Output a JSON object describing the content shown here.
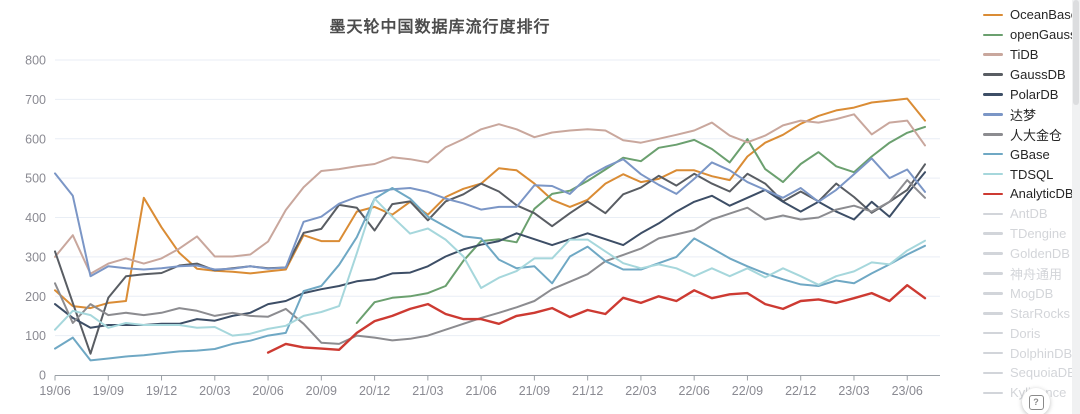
{
  "title": "墨天轮中国数据库流行度排行",
  "help_button": {
    "label": "?"
  },
  "chart_data": {
    "type": "line",
    "title": "墨天轮中国数据库流行度排行",
    "xlabel": "",
    "ylabel": "",
    "ylim": [
      0,
      800
    ],
    "y_ticks": [
      0,
      100,
      200,
      300,
      400,
      500,
      600,
      700,
      800
    ],
    "grid": "horizontal",
    "legend_position": "right",
    "x_tick_labels": [
      "19/06",
      "19/09",
      "19/12",
      "20/03",
      "20/06",
      "20/09",
      "20/12",
      "21/03",
      "21/06",
      "21/09",
      "21/12",
      "22/03",
      "22/06",
      "22/09",
      "22/12",
      "23/03",
      "23/06"
    ],
    "months_total": 50,
    "x_tick_month_step": 3,
    "series": [
      {
        "name": "OceanBase",
        "color": "#DA8C35",
        "start_index": 0,
        "values": [
          215,
          175,
          170,
          183,
          188,
          450,
          375,
          310,
          270,
          265,
          262,
          258,
          263,
          268,
          355,
          340,
          340,
          415,
          427,
          407,
          440,
          407,
          452,
          473,
          486,
          525,
          520,
          486,
          445,
          427,
          445,
          486,
          510,
          490,
          498,
          520,
          520,
          505,
          495,
          555,
          590,
          610,
          638,
          658,
          672,
          679,
          692,
          697,
          702,
          646
        ]
      },
      {
        "name": "openGauss",
        "color": "#6BA06F",
        "start_index": 17,
        "values": [
          132,
          185,
          196,
          200,
          208,
          226,
          290,
          340,
          345,
          337,
          422,
          460,
          468,
          493,
          522,
          552,
          543,
          577,
          585,
          597,
          574,
          540,
          599,
          523,
          490,
          536,
          566,
          530,
          515,
          555,
          590,
          615,
          630
        ]
      },
      {
        "name": "TiDB",
        "color": "#C9A79D",
        "start_index": 0,
        "values": [
          300,
          355,
          257,
          283,
          296,
          283,
          296,
          321,
          352,
          301,
          301,
          306,
          339,
          419,
          477,
          518,
          523,
          530,
          536,
          553,
          548,
          540,
          578,
          599,
          624,
          637,
          624,
          604,
          616,
          621,
          624,
          621,
          596,
          590,
          600,
          610,
          621,
          641,
          608,
          591,
          608,
          634,
          646,
          641,
          650,
          662,
          611,
          641,
          646,
          583
        ]
      },
      {
        "name": "GaussDB",
        "color": "#595D63",
        "start_index": 0,
        "values": [
          314,
          183,
          54,
          196,
          251,
          256,
          259,
          278,
          283,
          266,
          271,
          276,
          271,
          273,
          361,
          371,
          432,
          425,
          367,
          434,
          441,
          393,
          441,
          459,
          486,
          466,
          431,
          411,
          378,
          411,
          441,
          411,
          459,
          476,
          506,
          481,
          511,
          486,
          466,
          511,
          486,
          441,
          466,
          441,
          486,
          452,
          412,
          440,
          470,
          535
        ]
      },
      {
        "name": "PolarDB",
        "color": "#3D4E66",
        "start_index": 0,
        "values": [
          180,
          145,
          120,
          127,
          127,
          127,
          130,
          130,
          142,
          138,
          150,
          158,
          180,
          188,
          208,
          218,
          226,
          238,
          243,
          258,
          260,
          276,
          301,
          319,
          331,
          340,
          360,
          345,
          330,
          345,
          360,
          345,
          330,
          360,
          385,
          415,
          440,
          455,
          430,
          450,
          470,
          440,
          415,
          440,
          415,
          395,
          440,
          402,
          460,
          515
        ]
      },
      {
        "name": "达梦",
        "color": "#7B96C6",
        "start_index": 0,
        "values": [
          512,
          455,
          251,
          276,
          271,
          268,
          271,
          276,
          278,
          268,
          270,
          276,
          270,
          273,
          389,
          402,
          435,
          452,
          465,
          472,
          475,
          465,
          448,
          436,
          420,
          427,
          427,
          482,
          480,
          460,
          503,
          528,
          548,
          510,
          483,
          460,
          498,
          540,
          520,
          490,
          470,
          450,
          475,
          440,
          470,
          510,
          550,
          500,
          522,
          465
        ]
      },
      {
        "name": "人大金仓",
        "color": "#8C8C90",
        "start_index": 0,
        "values": [
          233,
          132,
          180,
          152,
          158,
          152,
          158,
          170,
          163,
          150,
          158,
          150,
          148,
          168,
          130,
          82,
          79,
          100,
          95,
          88,
          92,
          100,
          115,
          130,
          145,
          158,
          172,
          188,
          218,
          237,
          256,
          289,
          305,
          321,
          347,
          357,
          368,
          395,
          410,
          425,
          395,
          405,
          395,
          400,
          420,
          430,
          415,
          440,
          495,
          450
        ]
      },
      {
        "name": "GBase",
        "color": "#6FA8C4",
        "start_index": 0,
        "values": [
          67,
          95,
          37,
          42,
          47,
          50,
          55,
          60,
          62,
          66,
          79,
          87,
          100,
          107,
          213,
          226,
          280,
          350,
          448,
          475,
          448,
          402,
          377,
          352,
          347,
          293,
          271,
          276,
          233,
          301,
          326,
          289,
          268,
          268,
          284,
          300,
          347,
          322,
          296,
          276,
          258,
          243,
          230,
          226,
          240,
          233,
          258,
          281,
          306,
          328
        ]
      },
      {
        "name": "TDSQL",
        "color": "#A6D7DC",
        "start_index": 0,
        "values": [
          115,
          163,
          152,
          120,
          132,
          127,
          127,
          127,
          120,
          122,
          100,
          105,
          117,
          125,
          150,
          160,
          175,
          309,
          448,
          402,
          359,
          372,
          344,
          301,
          221,
          247,
          264,
          296,
          296,
          344,
          344,
          314,
          284,
          271,
          281,
          271,
          251,
          271,
          251,
          271,
          248,
          271,
          251,
          229,
          251,
          263,
          286,
          281,
          316,
          341
        ]
      },
      {
        "name": "AnalyticDB",
        "color": "#CD3A32",
        "start_index": 12,
        "values": [
          57,
          79,
          70,
          67,
          64,
          107,
          137,
          150,
          168,
          180,
          155,
          142,
          142,
          130,
          150,
          158,
          170,
          147,
          165,
          155,
          196,
          183,
          200,
          188,
          215,
          195,
          205,
          208,
          180,
          168,
          188,
          192,
          183,
          195,
          208,
          188,
          228,
          195
        ]
      }
    ],
    "inactive_legend": [
      "AntDB",
      "TDengine",
      "GoldenDB",
      "神舟通用",
      "MogDB",
      "StarRocks",
      "Doris",
      "DolphinDB",
      "SequoiaDB",
      "Kyligence"
    ],
    "inactive_color": "#D2D5DA"
  }
}
